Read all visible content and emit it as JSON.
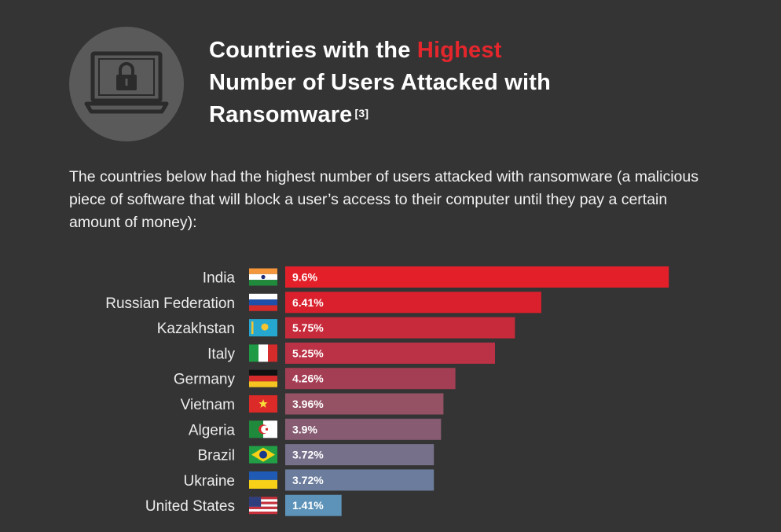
{
  "header": {
    "title_part1": "Countries with the ",
    "title_highlight": "Highest",
    "title_line2": "Number of Users Attacked with",
    "title_line3": "Ransomware",
    "citation": "[3]",
    "icon": "laptop-lock-icon"
  },
  "intro": "The countries below had the highest number of users attacked with ransomware (a malicious piece of software that will block a user’s access to their computer until they pay a certain amount of money):",
  "chart_data": {
    "type": "bar",
    "orientation": "horizontal",
    "categories": [
      "India",
      "Russian Federation",
      "Kazakhstan",
      "Italy",
      "Germany",
      "Vietnam",
      "Algeria",
      "Brazil",
      "Ukraine",
      "United States"
    ],
    "values": [
      9.6,
      6.41,
      5.75,
      5.25,
      4.26,
      3.96,
      3.9,
      3.72,
      3.72,
      1.41
    ],
    "value_labels": [
      "9.6%",
      "6.41%",
      "5.75%",
      "5.25%",
      "4.26%",
      "3.96%",
      "3.9%",
      "3.72%",
      "3.72%",
      "1.41%"
    ],
    "flag_icons": [
      "india-flag-icon",
      "russia-flag-icon",
      "kazakhstan-flag-icon",
      "italy-flag-icon",
      "germany-flag-icon",
      "vietnam-flag-icon",
      "algeria-flag-icon",
      "brazil-flag-icon",
      "ukraine-flag-icon",
      "usa-flag-icon"
    ],
    "bar_colors": [
      "#e3202a",
      "#d9202c",
      "#c72b3b",
      "#bb3145",
      "#a43e54",
      "#955265",
      "#875c72",
      "#76708b",
      "#6b7c9c",
      "#5d93b8"
    ],
    "unit": "%",
    "grid": false,
    "legend": "none"
  }
}
